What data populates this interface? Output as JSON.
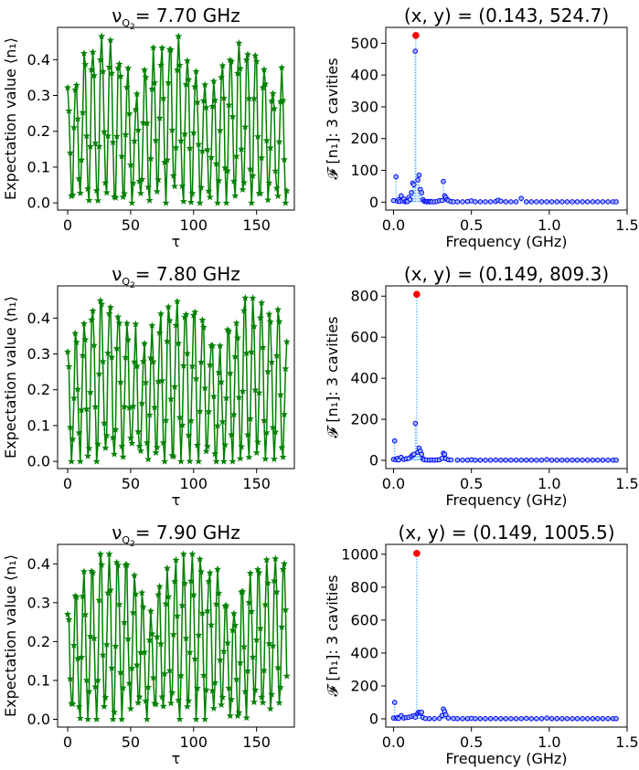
{
  "chart_data": [
    {
      "type": "line",
      "title_prefix": "ν",
      "title_sub": "Q",
      "title_subsub": "2",
      "title_suffix": "= 7.70 GHz",
      "xlabel": "τ",
      "ylabel": "Expectation value ⟨n₁⟩",
      "xlim": [
        -8,
        180
      ],
      "ylim": [
        -0.02,
        0.49
      ],
      "xticks": [
        0,
        50,
        100,
        150
      ],
      "yticks": [
        0.0,
        0.1,
        0.2,
        0.3,
        0.4
      ],
      "yticklabels": [
        "0.0",
        "0.1",
        "0.2",
        "0.3",
        "0.4"
      ],
      "color": "#008000",
      "marker": "star",
      "series": [
        {
          "x_start": 0,
          "x_step": 1,
          "n": 175,
          "amplitude": 0.45,
          "period": 6.8,
          "envelope_period": 55
        }
      ]
    },
    {
      "type": "scatter",
      "title": "(x, y) = (0.143, 524.7)",
      "xlabel": "Frequency (GHz)",
      "ylabel": "𝓕 [n₁]:  3 cavities",
      "xlim": [
        -0.05,
        1.5
      ],
      "ylim": [
        -25,
        550
      ],
      "xticks": [
        0.0,
        0.5,
        1.0,
        1.5
      ],
      "xticklabels": [
        "0.0",
        "0.5",
        "1.0",
        "1.5"
      ],
      "yticks": [
        0,
        100,
        200,
        300,
        400,
        500
      ],
      "yticklabels": [
        "0",
        "100",
        "200",
        "300",
        "400",
        "500"
      ],
      "point_color": "#0000ff",
      "stem_color": "#5ab4ff",
      "highlight_color": "#ff0000",
      "peak": {
        "x": 0.143,
        "y": 524.7
      },
      "points": [
        [
          0.0,
          5
        ],
        [
          0.016,
          80
        ],
        [
          0.025,
          3
        ],
        [
          0.033,
          8
        ],
        [
          0.041,
          2
        ],
        [
          0.049,
          20
        ],
        [
          0.057,
          5
        ],
        [
          0.066,
          10
        ],
        [
          0.074,
          1
        ],
        [
          0.082,
          3
        ],
        [
          0.09,
          2
        ],
        [
          0.098,
          15
        ],
        [
          0.106,
          8
        ],
        [
          0.115,
          30
        ],
        [
          0.123,
          60
        ],
        [
          0.131,
          55
        ],
        [
          0.139,
          475
        ],
        [
          0.143,
          524.7
        ],
        [
          0.156,
          70
        ],
        [
          0.164,
          85
        ],
        [
          0.172,
          40
        ],
        [
          0.18,
          30
        ],
        [
          0.189,
          8
        ],
        [
          0.197,
          3
        ],
        [
          0.205,
          2
        ],
        [
          0.213,
          1
        ],
        [
          0.221,
          2
        ],
        [
          0.23,
          1
        ],
        [
          0.238,
          2
        ],
        [
          0.246,
          1
        ],
        [
          0.262,
          1
        ],
        [
          0.279,
          2
        ],
        [
          0.295,
          5
        ],
        [
          0.311,
          5
        ],
        [
          0.32,
          65
        ],
        [
          0.328,
          20
        ],
        [
          0.336,
          15
        ],
        [
          0.344,
          8
        ],
        [
          0.352,
          5
        ],
        [
          0.369,
          2
        ],
        [
          0.385,
          1
        ],
        [
          0.41,
          1
        ],
        [
          0.443,
          1
        ],
        [
          0.475,
          2
        ],
        [
          0.5,
          4
        ],
        [
          0.525,
          1
        ],
        [
          0.557,
          1
        ],
        [
          0.59,
          1
        ],
        [
          0.623,
          1
        ],
        [
          0.656,
          2
        ],
        [
          0.672,
          6
        ],
        [
          0.689,
          3
        ],
        [
          0.721,
          1
        ],
        [
          0.754,
          1
        ],
        [
          0.787,
          1
        ],
        [
          0.82,
          12
        ],
        [
          0.853,
          1
        ],
        [
          0.885,
          1
        ],
        [
          0.918,
          1
        ],
        [
          0.951,
          1
        ],
        [
          0.984,
          1
        ],
        [
          1.016,
          1
        ],
        [
          1.049,
          1
        ],
        [
          1.082,
          1
        ],
        [
          1.115,
          1
        ],
        [
          1.148,
          1
        ],
        [
          1.18,
          1
        ],
        [
          1.213,
          1
        ],
        [
          1.246,
          1
        ],
        [
          1.279,
          1
        ],
        [
          1.311,
          1
        ],
        [
          1.344,
          1
        ],
        [
          1.377,
          1
        ],
        [
          1.41,
          1
        ],
        [
          1.43,
          1
        ]
      ]
    },
    {
      "type": "line",
      "title_prefix": "ν",
      "title_sub": "Q",
      "title_subsub": "2",
      "title_suffix": "= 7.80 GHz",
      "xlabel": "τ",
      "ylabel": "Expectation value ⟨n₁⟩",
      "xlim": [
        -8,
        180
      ],
      "ylim": [
        -0.02,
        0.49
      ],
      "xticks": [
        0,
        50,
        100,
        150
      ],
      "yticks": [
        0.0,
        0.1,
        0.2,
        0.3,
        0.4
      ],
      "yticklabels": [
        "0.0",
        "0.1",
        "0.2",
        "0.3",
        "0.4"
      ],
      "color": "#008000",
      "marker": "star",
      "series": [
        {
          "x_start": 0,
          "x_step": 1,
          "n": 175,
          "amplitude": 0.45,
          "period": 6.7,
          "envelope_period": 60
        }
      ]
    },
    {
      "type": "scatter",
      "title": "(x, y) = (0.149, 809.3)",
      "xlabel": "Frequency (GHz)",
      "ylabel": "𝓕 [n₁]:  3 cavities",
      "xlim": [
        -0.05,
        1.5
      ],
      "ylim": [
        -40,
        850
      ],
      "xticks": [
        0.0,
        0.5,
        1.0,
        1.5
      ],
      "xticklabels": [
        "0.0",
        "0.5",
        "1.0",
        "1.5"
      ],
      "yticks": [
        0,
        200,
        400,
        600,
        800
      ],
      "yticklabels": [
        "0",
        "200",
        "400",
        "600",
        "800"
      ],
      "point_color": "#0000ff",
      "stem_color": "#5ab4ff",
      "highlight_color": "#ff0000",
      "peak": {
        "x": 0.149,
        "y": 809.3
      },
      "points": [
        [
          0.0,
          5
        ],
        [
          0.007,
          95
        ],
        [
          0.016,
          3
        ],
        [
          0.025,
          10
        ],
        [
          0.033,
          2
        ],
        [
          0.049,
          15
        ],
        [
          0.066,
          5
        ],
        [
          0.082,
          8
        ],
        [
          0.098,
          10
        ],
        [
          0.115,
          20
        ],
        [
          0.123,
          25
        ],
        [
          0.131,
          30
        ],
        [
          0.14,
          180
        ],
        [
          0.149,
          809.3
        ],
        [
          0.156,
          40
        ],
        [
          0.164,
          60
        ],
        [
          0.172,
          45
        ],
        [
          0.18,
          30
        ],
        [
          0.189,
          8
        ],
        [
          0.197,
          3
        ],
        [
          0.213,
          2
        ],
        [
          0.23,
          1
        ],
        [
          0.246,
          2
        ],
        [
          0.262,
          1
        ],
        [
          0.279,
          2
        ],
        [
          0.295,
          3
        ],
        [
          0.311,
          10
        ],
        [
          0.32,
          35
        ],
        [
          0.328,
          30
        ],
        [
          0.336,
          8
        ],
        [
          0.352,
          3
        ],
        [
          0.369,
          2
        ],
        [
          0.41,
          1
        ],
        [
          0.443,
          1
        ],
        [
          0.475,
          1
        ],
        [
          0.5,
          3
        ],
        [
          0.525,
          1
        ],
        [
          0.557,
          1
        ],
        [
          0.59,
          1
        ],
        [
          0.623,
          1
        ],
        [
          0.656,
          2
        ],
        [
          0.689,
          1
        ],
        [
          0.721,
          1
        ],
        [
          0.754,
          1
        ],
        [
          0.787,
          1
        ],
        [
          0.82,
          1
        ],
        [
          0.853,
          1
        ],
        [
          0.885,
          1
        ],
        [
          0.918,
          1
        ],
        [
          0.951,
          1
        ],
        [
          0.984,
          4
        ],
        [
          1.016,
          1
        ],
        [
          1.049,
          1
        ],
        [
          1.082,
          1
        ],
        [
          1.115,
          1
        ],
        [
          1.148,
          1
        ],
        [
          1.18,
          1
        ],
        [
          1.213,
          1
        ],
        [
          1.246,
          1
        ],
        [
          1.279,
          1
        ],
        [
          1.311,
          1
        ],
        [
          1.344,
          1
        ],
        [
          1.377,
          1
        ],
        [
          1.41,
          1
        ],
        [
          1.43,
          1
        ]
      ]
    },
    {
      "type": "line",
      "title_prefix": "ν",
      "title_sub": "Q",
      "title_subsub": "2",
      "title_suffix": "= 7.90 GHz",
      "xlabel": "τ",
      "ylabel": "Expectation value ⟨n₁⟩",
      "xlim": [
        -8,
        180
      ],
      "ylim": [
        -0.02,
        0.45
      ],
      "xticks": [
        0,
        50,
        100,
        150
      ],
      "yticks": [
        0.0,
        0.1,
        0.2,
        0.3,
        0.4
      ],
      "yticklabels": [
        "0.0",
        "0.1",
        "0.2",
        "0.3",
        "0.4"
      ],
      "color": "#008000",
      "marker": "star",
      "series": [
        {
          "x_start": 0,
          "x_step": 1,
          "n": 175,
          "amplitude": 0.42,
          "period": 6.6,
          "envelope_period": 65
        }
      ]
    },
    {
      "type": "scatter",
      "title": "(x, y) = (0.149, 1005.5)",
      "xlabel": "Frequency (GHz)",
      "ylabel": "𝓕 [n₁]:  3 cavities",
      "xlim": [
        -0.05,
        1.5
      ],
      "ylim": [
        -50,
        1060
      ],
      "xticks": [
        0.0,
        0.5,
        1.0,
        1.5
      ],
      "xticklabels": [
        "0.0",
        "0.5",
        "1.0",
        "1.5"
      ],
      "yticks": [
        0,
        200,
        400,
        600,
        800,
        1000
      ],
      "yticklabels": [
        "0",
        "200",
        "400",
        "600",
        "800",
        "1000"
      ],
      "point_color": "#0000ff",
      "stem_color": "#5ab4ff",
      "highlight_color": "#ff0000",
      "peak": {
        "x": 0.149,
        "y": 1005.5
      },
      "points": [
        [
          0.0,
          5
        ],
        [
          0.007,
          100
        ],
        [
          0.016,
          3
        ],
        [
          0.025,
          8
        ],
        [
          0.033,
          2
        ],
        [
          0.049,
          20
        ],
        [
          0.066,
          5
        ],
        [
          0.082,
          8
        ],
        [
          0.098,
          10
        ],
        [
          0.115,
          15
        ],
        [
          0.131,
          20
        ],
        [
          0.14,
          10
        ],
        [
          0.149,
          1005.5
        ],
        [
          0.156,
          35
        ],
        [
          0.164,
          40
        ],
        [
          0.172,
          35
        ],
        [
          0.18,
          40
        ],
        [
          0.189,
          8
        ],
        [
          0.205,
          2
        ],
        [
          0.23,
          1
        ],
        [
          0.262,
          1
        ],
        [
          0.295,
          3
        ],
        [
          0.311,
          20
        ],
        [
          0.32,
          60
        ],
        [
          0.328,
          45
        ],
        [
          0.336,
          25
        ],
        [
          0.352,
          5
        ],
        [
          0.385,
          2
        ],
        [
          0.41,
          1
        ],
        [
          0.443,
          1
        ],
        [
          0.475,
          1
        ],
        [
          0.5,
          3
        ],
        [
          0.525,
          1
        ],
        [
          0.557,
          1
        ],
        [
          0.59,
          1
        ],
        [
          0.623,
          1
        ],
        [
          0.656,
          2
        ],
        [
          0.689,
          1
        ],
        [
          0.721,
          1
        ],
        [
          0.754,
          1
        ],
        [
          0.787,
          1
        ],
        [
          0.82,
          1
        ],
        [
          0.853,
          3
        ],
        [
          0.885,
          1
        ],
        [
          0.918,
          1
        ],
        [
          0.951,
          1
        ],
        [
          0.984,
          5
        ],
        [
          1.016,
          1
        ],
        [
          1.049,
          1
        ],
        [
          1.082,
          1
        ],
        [
          1.115,
          1
        ],
        [
          1.148,
          1
        ],
        [
          1.18,
          1
        ],
        [
          1.213,
          1
        ],
        [
          1.246,
          1
        ],
        [
          1.279,
          1
        ],
        [
          1.311,
          1
        ],
        [
          1.344,
          1
        ],
        [
          1.377,
          1
        ],
        [
          1.41,
          1
        ],
        [
          1.43,
          1
        ]
      ]
    }
  ]
}
